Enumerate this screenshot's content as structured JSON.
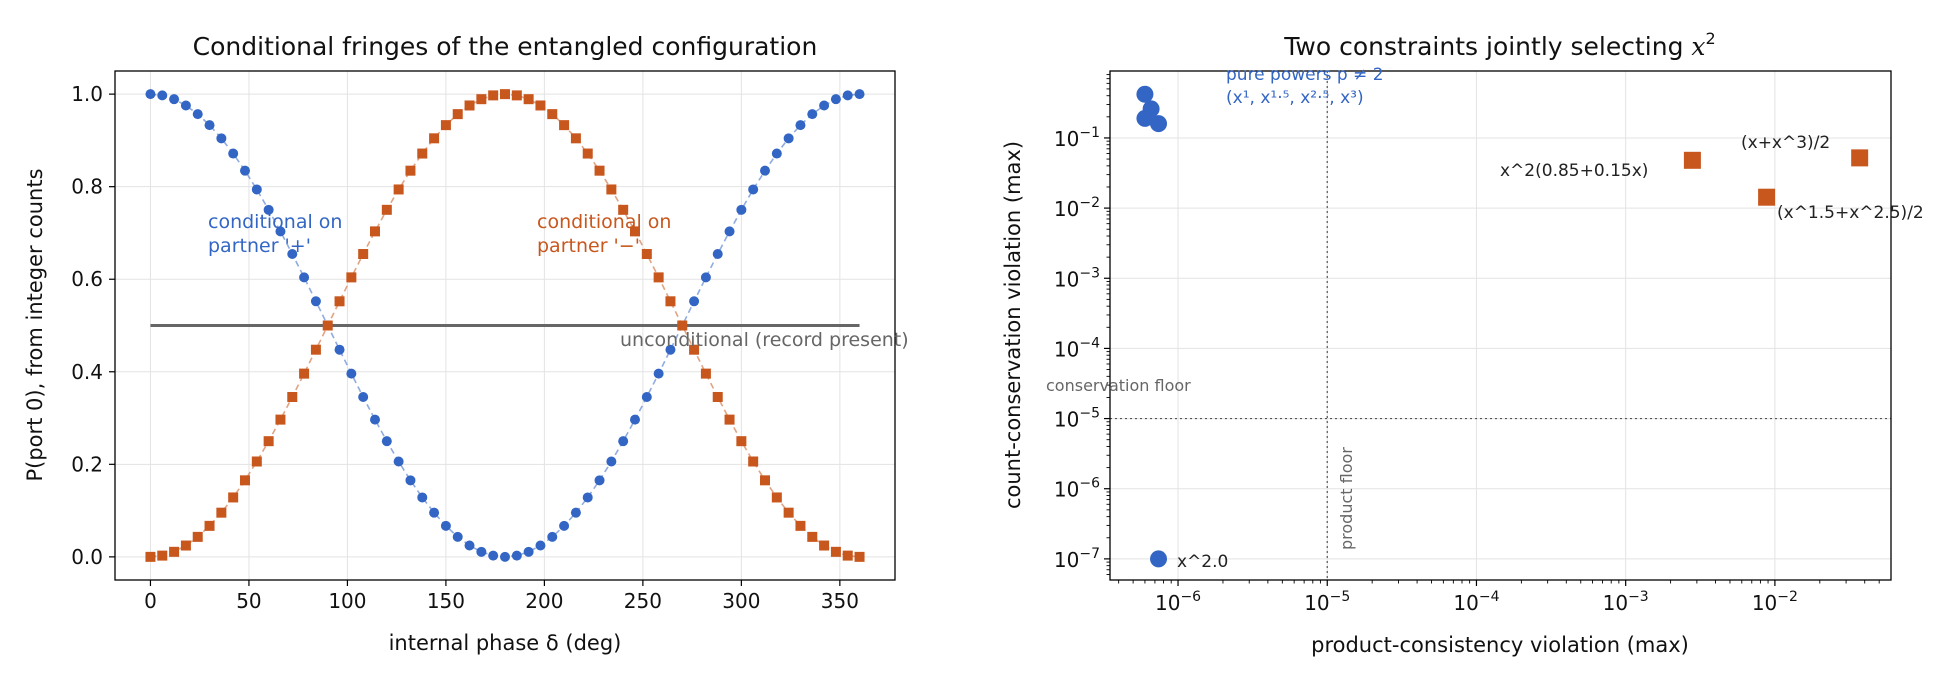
{
  "chart_data": [
    {
      "type": "line",
      "title": "Conditional fringes of the entangled configuration",
      "xlabel": "internal phase δ (deg)",
      "ylabel": "P(port 0), from integer counts",
      "xlim": [
        -18,
        378
      ],
      "ylim": [
        -0.05,
        1.05
      ],
      "xticks": [
        0,
        50,
        100,
        150,
        200,
        250,
        300,
        350
      ],
      "xtick_labels": [
        "0",
        "50",
        "100",
        "150",
        "200",
        "250",
        "300",
        "350"
      ],
      "yticks": [
        0.0,
        0.2,
        0.4,
        0.6,
        0.8,
        1.0
      ],
      "ytick_labels": [
        "0.0",
        "0.2",
        "0.4",
        "0.6",
        "0.8",
        "1.0"
      ],
      "grid": true,
      "x": [
        0,
        6,
        12,
        18,
        24,
        30,
        36,
        42,
        48,
        54,
        60,
        66,
        72,
        78,
        84,
        90,
        96,
        102,
        108,
        114,
        120,
        126,
        132,
        138,
        144,
        150,
        156,
        162,
        168,
        174,
        180,
        186,
        192,
        198,
        204,
        210,
        216,
        222,
        228,
        234,
        240,
        246,
        252,
        258,
        264,
        270,
        276,
        282,
        288,
        294,
        300,
        306,
        312,
        318,
        324,
        330,
        336,
        342,
        348,
        354,
        360
      ],
      "series": [
        {
          "name": "conditional on partner '+'",
          "label_text": "conditional on\npartner '+'",
          "color": "#3366c4",
          "marker": "circle",
          "values": [
            1.0,
            0.9973,
            0.9891,
            0.9755,
            0.9568,
            0.933,
            0.9045,
            0.8716,
            0.8346,
            0.794,
            0.75,
            0.7034,
            0.6545,
            0.604,
            0.5523,
            0.5,
            0.4477,
            0.396,
            0.3455,
            0.2966,
            0.25,
            0.2061,
            0.1654,
            0.1284,
            0.0955,
            0.067,
            0.0432,
            0.0245,
            0.0109,
            0.0027,
            0.0,
            0.0027,
            0.0109,
            0.0245,
            0.0432,
            0.067,
            0.0955,
            0.1284,
            0.1654,
            0.2061,
            0.25,
            0.2966,
            0.3455,
            0.396,
            0.4477,
            0.5,
            0.5523,
            0.604,
            0.6545,
            0.7034,
            0.75,
            0.794,
            0.8346,
            0.8716,
            0.9045,
            0.933,
            0.9568,
            0.9755,
            0.9891,
            0.9973,
            1.0
          ]
        },
        {
          "name": "conditional on partner '−'",
          "label_text": "conditional on\npartner '−'",
          "color": "#c8571e",
          "marker": "square",
          "values": [
            0.0,
            0.0027,
            0.0109,
            0.0245,
            0.0432,
            0.067,
            0.0955,
            0.1284,
            0.1654,
            0.2061,
            0.25,
            0.2966,
            0.3455,
            0.396,
            0.4477,
            0.5,
            0.5523,
            0.604,
            0.6545,
            0.7034,
            0.75,
            0.794,
            0.8346,
            0.8716,
            0.9045,
            0.933,
            0.9568,
            0.9755,
            0.9891,
            0.9973,
            1.0,
            0.9973,
            0.9891,
            0.9755,
            0.9568,
            0.933,
            0.9045,
            0.8716,
            0.8346,
            0.794,
            0.75,
            0.7034,
            0.6545,
            0.604,
            0.5523,
            0.5,
            0.4477,
            0.396,
            0.3455,
            0.2966,
            0.25,
            0.2061,
            0.1654,
            0.1284,
            0.0955,
            0.067,
            0.0432,
            0.0245,
            0.0109,
            0.0027,
            0.0
          ]
        }
      ],
      "reference_line": {
        "label": "unconditional (record present)",
        "y": 0.5,
        "x_range": [
          0,
          360
        ],
        "color": "#666666"
      }
    },
    {
      "type": "scatter",
      "title": "Two constraints jointly selecting x²",
      "xlabel": "product-consistency violation (max)",
      "ylabel": "count-conservation violation (max)",
      "xscale": "log",
      "yscale": "log",
      "xlim": [
        3.5e-07,
        0.06
      ],
      "ylim": [
        5e-08,
        0.9
      ],
      "xticks": [
        1e-06,
        1e-05,
        0.0001,
        0.001,
        0.01
      ],
      "xtick_labels": [
        [
          "10",
          "−6"
        ],
        [
          "10",
          "−5"
        ],
        [
          "10",
          "−4"
        ],
        [
          "10",
          "−3"
        ],
        [
          "10",
          "−2"
        ]
      ],
      "yticks": [
        1e-07,
        1e-06,
        1e-05,
        0.0001,
        0.001,
        0.01,
        0.1
      ],
      "ytick_labels": [
        [
          "10",
          "−7"
        ],
        [
          "10",
          "−6"
        ],
        [
          "10",
          "−5"
        ],
        [
          "10",
          "−4"
        ],
        [
          "10",
          "−3"
        ],
        [
          "10",
          "−2"
        ],
        [
          "10",
          "−1"
        ]
      ],
      "grid": true,
      "floors": {
        "conservation": {
          "label": "conservation floor",
          "y": 1e-05
        },
        "product": {
          "label": "product floor",
          "x": 1e-05
        }
      },
      "groups": {
        "pure_powers": {
          "label_line1": "pure powers p ≠ 2",
          "label_line2": "(x¹, x¹·⁵, x²·⁵, x³)",
          "color": "#3366c4",
          "marker": "circle",
          "points": [
            {
              "x": 6e-07,
              "y": 0.42
            },
            {
              "x": 6.6e-07,
              "y": 0.26
            },
            {
              "x": 6e-07,
              "y": 0.19
            },
            {
              "x": 7.4e-07,
              "y": 0.16
            }
          ]
        },
        "x2": {
          "label": "x^2.0",
          "color": "#3366c4",
          "marker": "circle",
          "points": [
            {
              "x": 7.4e-07,
              "y": 1e-07
            }
          ]
        },
        "mixtures": {
          "color": "#c8571e",
          "marker": "square",
          "points": [
            {
              "label": "x^2(0.85+0.15x)",
              "x": 0.0028,
              "y": 0.048
            },
            {
              "label": "(x+x^3)/2",
              "x": 0.037,
              "y": 0.052
            },
            {
              "label": "(x^1.5+x^2.5)/2",
              "x": 0.0088,
              "y": 0.0143
            }
          ]
        }
      }
    }
  ]
}
